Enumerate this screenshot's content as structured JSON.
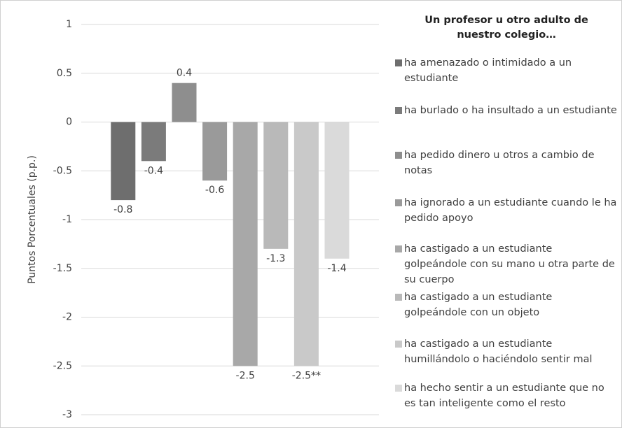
{
  "chart_data": {
    "type": "bar",
    "legend_title": "Un profesor u otro adulto de nuestro colegio…",
    "y_label": "Puntos Porcentuales (p.p.)",
    "categories": [
      "ha amenazado o intimidado a un estudiante",
      "ha burlado o ha insultado a un estudiante",
      "ha pedido dinero u otros a cambio de notas",
      "ha ignorado a un estudiante cuando le ha pedido apoyo",
      "ha castigado a un estudiante golpeándole con su mano u otra parte de su cuerpo",
      "ha castigado a un estudiante golpeándole con un objeto",
      "ha castigado a un estudiante humillándolo o haciéndolo sentir mal",
      "ha hecho sentir a un estudiante que no es tan inteligente como el resto"
    ],
    "values": [
      -0.8,
      -0.4,
      0.4,
      -0.6,
      -2.5,
      -1.3,
      -2.5,
      -1.4
    ],
    "value_labels": [
      "-0.8",
      "-0.4",
      "0.4",
      "-0.6",
      "-2.5",
      "-1.3",
      "-2.5**",
      "-1.4"
    ],
    "colors": [
      "#6e6e6e",
      "#7b7b7b",
      "#8e8e8e",
      "#9a9a9a",
      "#a8a8a8",
      "#b9b9b9",
      "#c9c9c9",
      "#dadada"
    ],
    "ylim": [
      -3,
      1
    ],
    "yticks": [
      1,
      0.5,
      0,
      -0.5,
      -1,
      -1.5,
      -2,
      -2.5,
      -3
    ],
    "grid": true
  }
}
